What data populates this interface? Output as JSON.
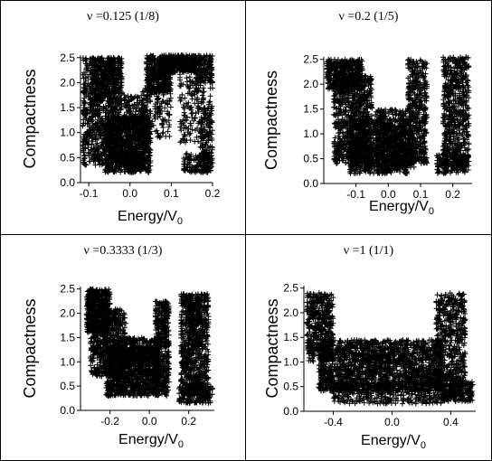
{
  "chart_data": [
    {
      "type": "scatter",
      "title": "ν =0.125 (1/8)",
      "xlabel": "Energy/V",
      "xlabel_sub": "0",
      "ylabel": "Compactness",
      "xlim": [
        -0.12,
        0.2
      ],
      "ylim": [
        0,
        2.55
      ],
      "xticks": [
        "-0.1",
        "0.0",
        "0.1",
        "0.2"
      ],
      "xtick_values": [
        -0.1,
        0.0,
        0.1,
        0.2
      ],
      "yticks": [
        "0.0",
        "0.5",
        "1.0",
        "1.5",
        "2.0",
        "2.5"
      ],
      "ytick_values": [
        0.0,
        0.5,
        1.0,
        1.5,
        2.0,
        2.5
      ],
      "marker": "+",
      "grid": false,
      "legend": "none",
      "seed": 11,
      "clusters": [
        {
          "x": [
            -0.115,
            -0.02
          ],
          "y": [
            0.35,
            2.5
          ],
          "n": 900
        },
        {
          "x": [
            -0.095,
            -0.02
          ],
          "y": [
            1.6,
            2.5
          ],
          "n": 260
        },
        {
          "x": [
            -0.06,
            0.05
          ],
          "y": [
            0.2,
            1.3
          ],
          "n": 800
        },
        {
          "x": [
            -0.015,
            0.045
          ],
          "y": [
            0.2,
            1.75
          ],
          "n": 330
        },
        {
          "x": [
            0.04,
            0.1
          ],
          "y": [
            1.8,
            2.55
          ],
          "n": 420
        },
        {
          "x": [
            0.08,
            0.16
          ],
          "y": [
            2.2,
            2.55
          ],
          "n": 320
        },
        {
          "x": [
            0.025,
            0.1
          ],
          "y": [
            0.9,
            1.9
          ],
          "n": 140
        },
        {
          "x": [
            0.12,
            0.2
          ],
          "y": [
            0.8,
            2.45
          ],
          "n": 230
        },
        {
          "x": [
            0.13,
            0.2
          ],
          "y": [
            0.2,
            0.6
          ],
          "n": 150
        },
        {
          "x": [
            0.16,
            0.2
          ],
          "y": [
            2.0,
            2.55
          ],
          "n": 130
        },
        {
          "x": [
            0.17,
            0.2
          ],
          "y": [
            0.25,
            1.5
          ],
          "n": 110
        }
      ]
    },
    {
      "type": "scatter",
      "title": "ν =0.2 (1/5)",
      "xlabel": "Energy/V",
      "xlabel_sub": "0",
      "ylabel": "Compactness",
      "xlim": [
        -0.2,
        0.26
      ],
      "ylim": [
        0,
        2.55
      ],
      "xticks": [
        "-0.1",
        "0.0",
        "0.1",
        "0.2"
      ],
      "xtick_values": [
        -0.1,
        0.0,
        0.1,
        0.2
      ],
      "yticks": [
        "0.0",
        "0.5",
        "1.0",
        "1.5",
        "2.0",
        "2.5"
      ],
      "ytick_values": [
        0.0,
        0.5,
        1.0,
        1.5,
        2.0,
        2.5
      ],
      "marker": "+",
      "grid": false,
      "legend": "none",
      "seed": 23,
      "clusters": [
        {
          "x": [
            -0.19,
            -0.08
          ],
          "y": [
            1.9,
            2.5
          ],
          "n": 400
        },
        {
          "x": [
            -0.17,
            -0.05
          ],
          "y": [
            0.4,
            2.2
          ],
          "n": 850
        },
        {
          "x": [
            -0.12,
            0.06
          ],
          "y": [
            0.2,
            1.3
          ],
          "n": 900
        },
        {
          "x": [
            -0.04,
            0.08
          ],
          "y": [
            0.3,
            1.5
          ],
          "n": 400
        },
        {
          "x": [
            0.06,
            0.12
          ],
          "y": [
            0.4,
            2.5
          ],
          "n": 450
        },
        {
          "x": [
            0.17,
            0.25
          ],
          "y": [
            0.3,
            2.55
          ],
          "n": 650
        },
        {
          "x": [
            0.15,
            0.25
          ],
          "y": [
            0.2,
            0.6
          ],
          "n": 150
        }
      ]
    },
    {
      "type": "scatter",
      "title": "ν =0.3333 (1/3)",
      "xlabel": "Energy/V",
      "xlabel_sub": "0",
      "ylabel": "Compactness",
      "xlim": [
        -0.35,
        0.33
      ],
      "ylim": [
        0,
        2.55
      ],
      "xticks": [
        "-0.2",
        "0.0",
        "0.2"
      ],
      "xtick_values": [
        -0.2,
        0.0,
        0.2
      ],
      "yticks": [
        "0.0",
        "0.5",
        "1.0",
        "1.5",
        "2.0",
        "2.5"
      ],
      "ytick_values": [
        0.0,
        0.5,
        1.0,
        1.5,
        2.0,
        2.5
      ],
      "marker": "+",
      "grid": false,
      "legend": "none",
      "seed": 37,
      "clusters": [
        {
          "x": [
            -0.32,
            -0.2
          ],
          "y": [
            1.6,
            2.5
          ],
          "n": 420
        },
        {
          "x": [
            -0.3,
            -0.12
          ],
          "y": [
            0.7,
            2.1
          ],
          "n": 650
        },
        {
          "x": [
            -0.22,
            0.05
          ],
          "y": [
            0.3,
            1.3
          ],
          "n": 1000
        },
        {
          "x": [
            -0.15,
            0.05
          ],
          "y": [
            0.9,
            1.5
          ],
          "n": 350
        },
        {
          "x": [
            0.03,
            0.1
          ],
          "y": [
            0.3,
            2.25
          ],
          "n": 420
        },
        {
          "x": [
            0.16,
            0.3
          ],
          "y": [
            0.3,
            2.4
          ],
          "n": 850
        },
        {
          "x": [
            0.15,
            0.32
          ],
          "y": [
            0.15,
            0.5
          ],
          "n": 180
        }
      ]
    },
    {
      "type": "scatter",
      "title": "ν =1 (1/1)",
      "xlabel": "Energy/V",
      "xlabel_sub": "0",
      "ylabel": "Compactness",
      "xlim": [
        -0.6,
        0.57
      ],
      "ylim": [
        0,
        2.55
      ],
      "xticks": [
        "-0.4",
        "0.0",
        "0.4"
      ],
      "xtick_values": [
        -0.4,
        0.0,
        0.4
      ],
      "yticks": [
        "0.0",
        "0.5",
        "1.0",
        "1.5",
        "2.0",
        "2.5"
      ],
      "ytick_values": [
        0.0,
        0.5,
        1.0,
        1.5,
        2.0,
        2.5
      ],
      "marker": "+",
      "grid": false,
      "legend": "none",
      "seed": 53,
      "clusters": [
        {
          "x": [
            -0.58,
            -0.4
          ],
          "y": [
            1.0,
            2.4
          ],
          "n": 500
        },
        {
          "x": [
            -0.5,
            0.35
          ],
          "y": [
            0.4,
            1.45
          ],
          "n": 1800
        },
        {
          "x": [
            -0.4,
            0.35
          ],
          "y": [
            0.15,
            0.6
          ],
          "n": 400
        },
        {
          "x": [
            0.3,
            0.5
          ],
          "y": [
            0.5,
            2.4
          ],
          "n": 550
        },
        {
          "x": [
            0.35,
            0.55
          ],
          "y": [
            0.2,
            0.6
          ],
          "n": 200
        }
      ]
    }
  ]
}
